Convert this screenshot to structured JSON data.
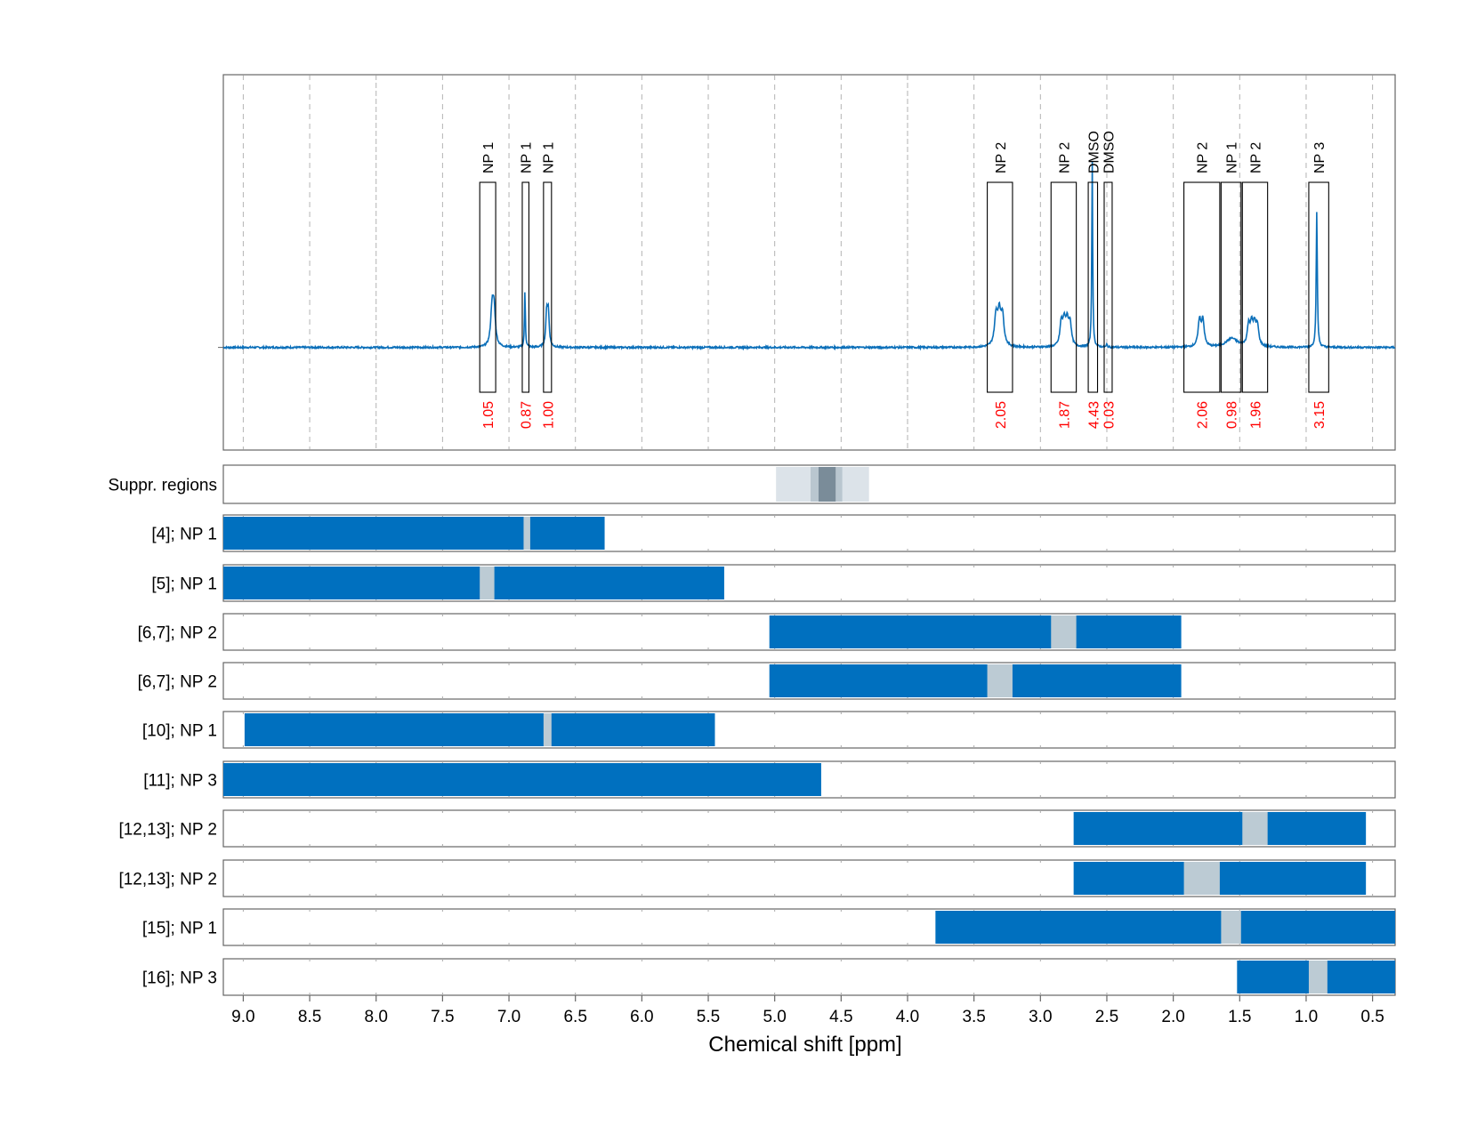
{
  "colors": {
    "spectrum": "#0b6fb9",
    "integral_label": "#ff0000",
    "region_bar": "#0070bf",
    "gap": "#bccbd4",
    "suppression_light": "#dce3e9",
    "suppression_mid": "#b9c6cf",
    "suppression_dark": "#7a8c99",
    "grid": "#9a9a9a",
    "axis": "#666666",
    "text": "#000000"
  },
  "chart_data": {
    "type": "line",
    "xlabel": "Chemical shift [ppm]",
    "xlim": [
      9.15,
      0.33
    ],
    "x_reversed": true,
    "grid": true,
    "x_ticks": [
      {
        "value": 9.0,
        "label": "9.0"
      },
      {
        "value": 8.5,
        "label": "8.5"
      },
      {
        "value": 8.0,
        "label": "8.0"
      },
      {
        "value": 7.5,
        "label": "7.5"
      },
      {
        "value": 7.0,
        "label": "7.0"
      },
      {
        "value": 6.5,
        "label": "6.5"
      },
      {
        "value": 6.0,
        "label": "6.0"
      },
      {
        "value": 5.5,
        "label": "5.5"
      },
      {
        "value": 5.0,
        "label": "5.0"
      },
      {
        "value": 4.5,
        "label": "4.5"
      },
      {
        "value": 4.0,
        "label": "4.0"
      },
      {
        "value": 3.5,
        "label": "3.5"
      },
      {
        "value": 3.0,
        "label": "3.0"
      },
      {
        "value": 2.5,
        "label": "2.5"
      },
      {
        "value": 2.0,
        "label": "2.0"
      },
      {
        "value": 1.5,
        "label": "1.5"
      },
      {
        "value": 1.0,
        "label": "1.0"
      },
      {
        "value": 0.5,
        "label": "0.5"
      }
    ],
    "spectrum": {
      "baseline": 0,
      "ylim": [
        -0.35,
        0.93
      ],
      "peaks": [
        {
          "center": 7.12,
          "height": 0.11,
          "width": 0.012,
          "split": 0.015,
          "mult": 2
        },
        {
          "center": 6.88,
          "height": 0.19,
          "width": 0.004,
          "split": 0.0,
          "mult": 1
        },
        {
          "center": 6.71,
          "height": 0.1,
          "width": 0.008,
          "split": 0.012,
          "mult": 2
        },
        {
          "center": 3.31,
          "height": 0.09,
          "width": 0.014,
          "split": 0.024,
          "mult": 3
        },
        {
          "center": 2.81,
          "height": 0.07,
          "width": 0.012,
          "split": 0.022,
          "mult": 4
        },
        {
          "center": 2.61,
          "height": 0.64,
          "width": 0.004,
          "split": 0.0,
          "mult": 1
        },
        {
          "center": 2.5,
          "height": 0.01,
          "width": 0.004,
          "split": 0.0,
          "mult": 1
        },
        {
          "center": 1.79,
          "height": 0.08,
          "width": 0.012,
          "split": 0.025,
          "mult": 2
        },
        {
          "center": 1.56,
          "height": 0.03,
          "width": 0.05,
          "split": 0.0,
          "mult": 1
        },
        {
          "center": 1.4,
          "height": 0.06,
          "width": 0.012,
          "split": 0.022,
          "mult": 4
        },
        {
          "center": 0.92,
          "height": 0.46,
          "width": 0.005,
          "split": 0.0,
          "mult": 1
        }
      ]
    },
    "signal_boxes": [
      {
        "from": 7.22,
        "to": 7.1,
        "label": "NP 1",
        "integral": "1.05"
      },
      {
        "from": 6.9,
        "to": 6.85,
        "label": "NP 1",
        "integral": "0.87"
      },
      {
        "from": 6.74,
        "to": 6.68,
        "label": "NP 1",
        "integral": "1.00"
      },
      {
        "from": 3.4,
        "to": 3.21,
        "label": "NP 2",
        "integral": "2.05"
      },
      {
        "from": 2.92,
        "to": 2.73,
        "label": "NP 2",
        "integral": "1.87"
      },
      {
        "from": 2.64,
        "to": 2.57,
        "label": "DMSO",
        "integral": "4.43"
      },
      {
        "from": 2.52,
        "to": 2.46,
        "label": "DMSO",
        "integral": "0.03"
      },
      {
        "from": 1.92,
        "to": 1.65,
        "label": "NP 2",
        "integral": "2.06"
      },
      {
        "from": 1.64,
        "to": 1.49,
        "label": "NP 1",
        "integral": "0.98"
      },
      {
        "from": 1.48,
        "to": 1.29,
        "label": "NP 2",
        "integral": "1.96"
      },
      {
        "from": 0.98,
        "to": 0.83,
        "label": "NP 3",
        "integral": "3.15"
      }
    ],
    "suppression": {
      "label": "Suppr. regions",
      "segments": [
        {
          "from": 4.99,
          "to": 4.73,
          "shade": "light"
        },
        {
          "from": 4.73,
          "to": 4.67,
          "shade": "mid"
        },
        {
          "from": 4.67,
          "to": 4.54,
          "shade": "dark"
        },
        {
          "from": 4.54,
          "to": 4.49,
          "shade": "mid"
        },
        {
          "from": 4.49,
          "to": 4.29,
          "shade": "light"
        }
      ]
    },
    "region_rows": [
      {
        "label": "[4]; NP 1",
        "start": 9.15,
        "end": 6.28,
        "gap": [
          6.89,
          6.84
        ]
      },
      {
        "label": "[5]; NP 1",
        "start": 9.15,
        "end": 5.38,
        "gap": [
          7.22,
          7.11
        ]
      },
      {
        "label": "[6,7]; NP 2",
        "start": 5.04,
        "end": 1.94,
        "gap": [
          2.92,
          2.73
        ]
      },
      {
        "label": "[6,7]; NP 2",
        "start": 5.04,
        "end": 1.94,
        "gap": [
          3.4,
          3.21
        ]
      },
      {
        "label": "[10]; NP 1",
        "start": 8.99,
        "end": 5.45,
        "gap": [
          6.74,
          6.68
        ]
      },
      {
        "label": "[11]; NP 3",
        "start": 9.15,
        "end": 4.65,
        "gap": null
      },
      {
        "label": "[12,13]; NP 2",
        "start": 2.75,
        "end": 0.55,
        "gap": [
          1.48,
          1.29
        ]
      },
      {
        "label": "[12,13]; NP 2",
        "start": 2.75,
        "end": 0.55,
        "gap": [
          1.92,
          1.65
        ]
      },
      {
        "label": "[15]; NP 1",
        "start": 3.79,
        "end": 0.33,
        "gap": [
          1.64,
          1.49
        ]
      },
      {
        "label": "[16]; NP 3",
        "start": 1.52,
        "end": 0.33,
        "gap": [
          0.98,
          0.84
        ]
      }
    ]
  }
}
